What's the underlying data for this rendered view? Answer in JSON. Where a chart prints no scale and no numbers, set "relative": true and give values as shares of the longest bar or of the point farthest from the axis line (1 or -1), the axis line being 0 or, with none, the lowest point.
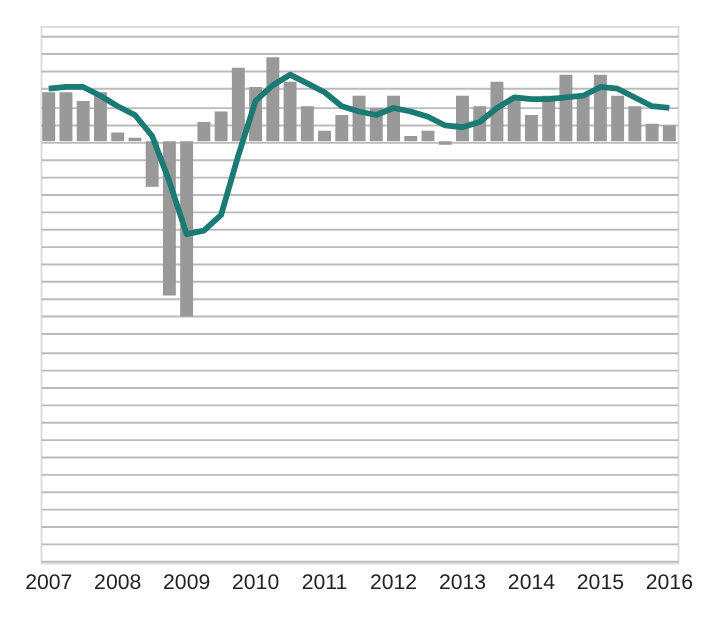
{
  "chart_data": {
    "type": "bar",
    "relative": true,
    "grid": "y",
    "categories": [
      "2007",
      null,
      null,
      null,
      "2008",
      null,
      null,
      null,
      "2009",
      null,
      null,
      null,
      "2010",
      null,
      null,
      null,
      "2011",
      null,
      null,
      null,
      "2012",
      null,
      null,
      null,
      "2013",
      null,
      null,
      null,
      "2014",
      null,
      null,
      null,
      "2015",
      null,
      null,
      null,
      "2016"
    ],
    "series": [
      {
        "color": "#999999",
        "values": [
          0.28,
          0.28,
          0.23,
          0.28,
          0.05,
          0.02,
          -0.26,
          -0.88,
          -1,
          0.11,
          0.17,
          0.42,
          0.31,
          0.48,
          0.34,
          0.2,
          0.06,
          0.15,
          0.26,
          0.19,
          0.26,
          0.03,
          0.06,
          -0.02,
          0.26,
          0.2,
          0.34,
          0.25,
          0.15,
          0.26,
          0.38,
          0.26,
          0.38,
          0.26,
          0.2,
          0.1,
          0.09
        ]
      },
      {
        "type": "line",
        "color": "#1a7a74",
        "values": [
          0.3,
          0.31,
          0.31,
          0.26,
          0.2,
          0.15,
          0.03,
          -0.23,
          -0.53,
          -0.51,
          -0.42,
          -0.08,
          0.23,
          0.32,
          0.38,
          0.33,
          0.28,
          0.2,
          0.17,
          0.15,
          0.19,
          0.17,
          0.14,
          0.09,
          0.08,
          0.11,
          0.19,
          0.25,
          0.24,
          0.24,
          0.25,
          0.26,
          0.31,
          0.3,
          0.25,
          0.2,
          0.19
        ]
      }
    ]
  }
}
